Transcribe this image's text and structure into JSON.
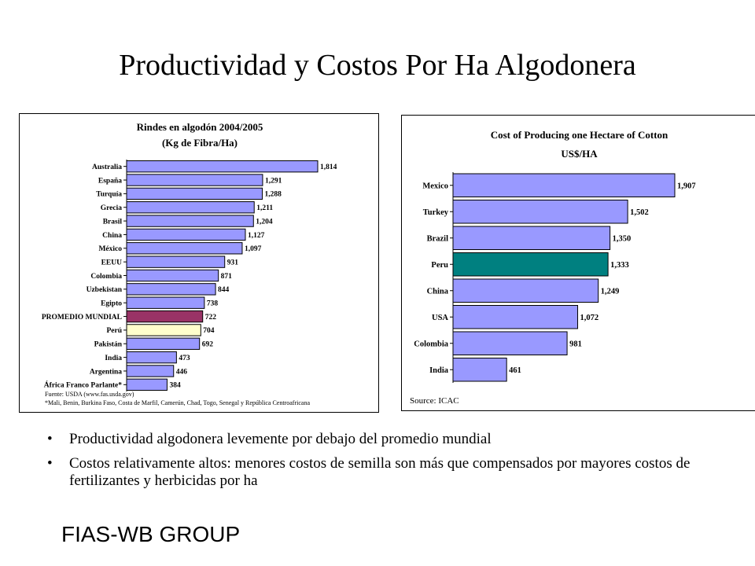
{
  "title": "Productividad y Costos Por Ha Algodonera",
  "chart_data": [
    {
      "type": "bar",
      "orientation": "horizontal",
      "title": "Rindes en algodón 2004/2005",
      "subtitle": "(Kg de Fibra/Ha)",
      "categories": [
        "Australia",
        "España",
        "Turquía",
        "Grecia",
        "Brasil",
        "China",
        "México",
        "EEUU",
        "Colombia",
        "Uzbekistan",
        "Egipto",
        "PROMEDIO MUNDIAL",
        "Perú",
        "Pakistán",
        "India",
        "Argentina",
        "África Franco Parlante*"
      ],
      "values": [
        1814,
        1291,
        1288,
        1211,
        1204,
        1127,
        1097,
        931,
        871,
        844,
        738,
        722,
        704,
        692,
        473,
        446,
        384
      ],
      "value_labels": [
        "1,814",
        "1,291",
        "1,288",
        "1,211",
        "1,204",
        "1,127",
        "1,097",
        "931",
        "871",
        "844",
        "738",
        "722",
        "704",
        "692",
        "473",
        "446",
        "384"
      ],
      "xlim": [
        0,
        1814
      ],
      "bar_color": "#9999ff",
      "highlights": {
        "PROMEDIO MUNDIAL": "#993366",
        "Perú": "#ffffcc"
      },
      "notes": [
        "Fuente: USDA (www.fas.usda.gov)",
        "*Mali, Benin, Burkina Faso, Costa de Marfil, Camerún, Chad, Togo, Senegal y República Centroafricana"
      ]
    },
    {
      "type": "bar",
      "orientation": "horizontal",
      "title": "Cost of Producing one Hectare of Cotton",
      "subtitle": "US$/HA",
      "categories": [
        "Mexico",
        "Turkey",
        "Brazil",
        "Peru",
        "China",
        "USA",
        "Colombia",
        "India"
      ],
      "values": [
        1907,
        1502,
        1350,
        1333,
        1249,
        1072,
        981,
        461
      ],
      "value_labels": [
        "1,907",
        "1,502",
        "1,350",
        "1,333",
        "1,249",
        "1,072",
        "981",
        "461"
      ],
      "xlim": [
        0,
        1907
      ],
      "bar_color": "#9999ff",
      "highlights": {
        "Peru": "#008080"
      },
      "notes": [
        "Source: ICAC"
      ]
    }
  ],
  "bullets": [
    "Productividad algodonera levemente por debajo del promedio mundial",
    "Costos relativamente altos: menores costos de semilla son más que compensados por mayores costos de fertilizantes y herbicidas por ha"
  ],
  "bullet_symbol": "•",
  "footer": "FIAS-WB GROUP"
}
